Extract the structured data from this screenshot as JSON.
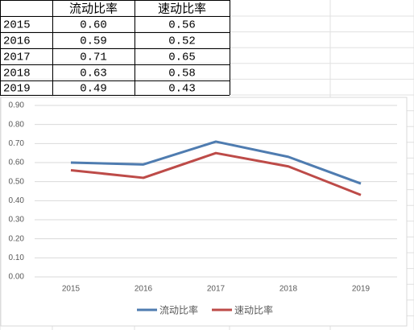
{
  "table": {
    "header": [
      "流动比率",
      "速动比率"
    ],
    "rows": [
      [
        "2015",
        "0.60",
        "0.56"
      ],
      [
        "2016",
        "0.59",
        "0.52"
      ],
      [
        "2017",
        "0.71",
        "0.65"
      ],
      [
        "2018",
        "0.63",
        "0.58"
      ],
      [
        "2019",
        "0.49",
        "0.43"
      ]
    ]
  },
  "chart_data": {
    "type": "line",
    "categories": [
      "2015",
      "2016",
      "2017",
      "2018",
      "2019"
    ],
    "series": [
      {
        "name": "流动比率",
        "color": "#4f7cb0",
        "values": [
          0.6,
          0.59,
          0.71,
          0.63,
          0.49
        ]
      },
      {
        "name": "速动比率",
        "color": "#bd4b48",
        "values": [
          0.56,
          0.52,
          0.65,
          0.58,
          0.43
        ]
      }
    ],
    "ylim": [
      0,
      0.9
    ],
    "yticks": [
      {
        "value": 0,
        "label": "0.00"
      },
      {
        "value": 0.1,
        "label": "0.10"
      },
      {
        "value": 0.2,
        "label": "0.20"
      },
      {
        "value": 0.3,
        "label": "0.30"
      },
      {
        "value": 0.4,
        "label": "0.40"
      },
      {
        "value": 0.5,
        "label": "0.50"
      },
      {
        "value": 0.6,
        "label": "0.60"
      },
      {
        "value": 0.7,
        "label": "0.70"
      },
      {
        "value": 0.8,
        "label": "0.80"
      },
      {
        "value": 0.9,
        "label": "0.90"
      }
    ],
    "grid": true,
    "legend": "bottom"
  }
}
